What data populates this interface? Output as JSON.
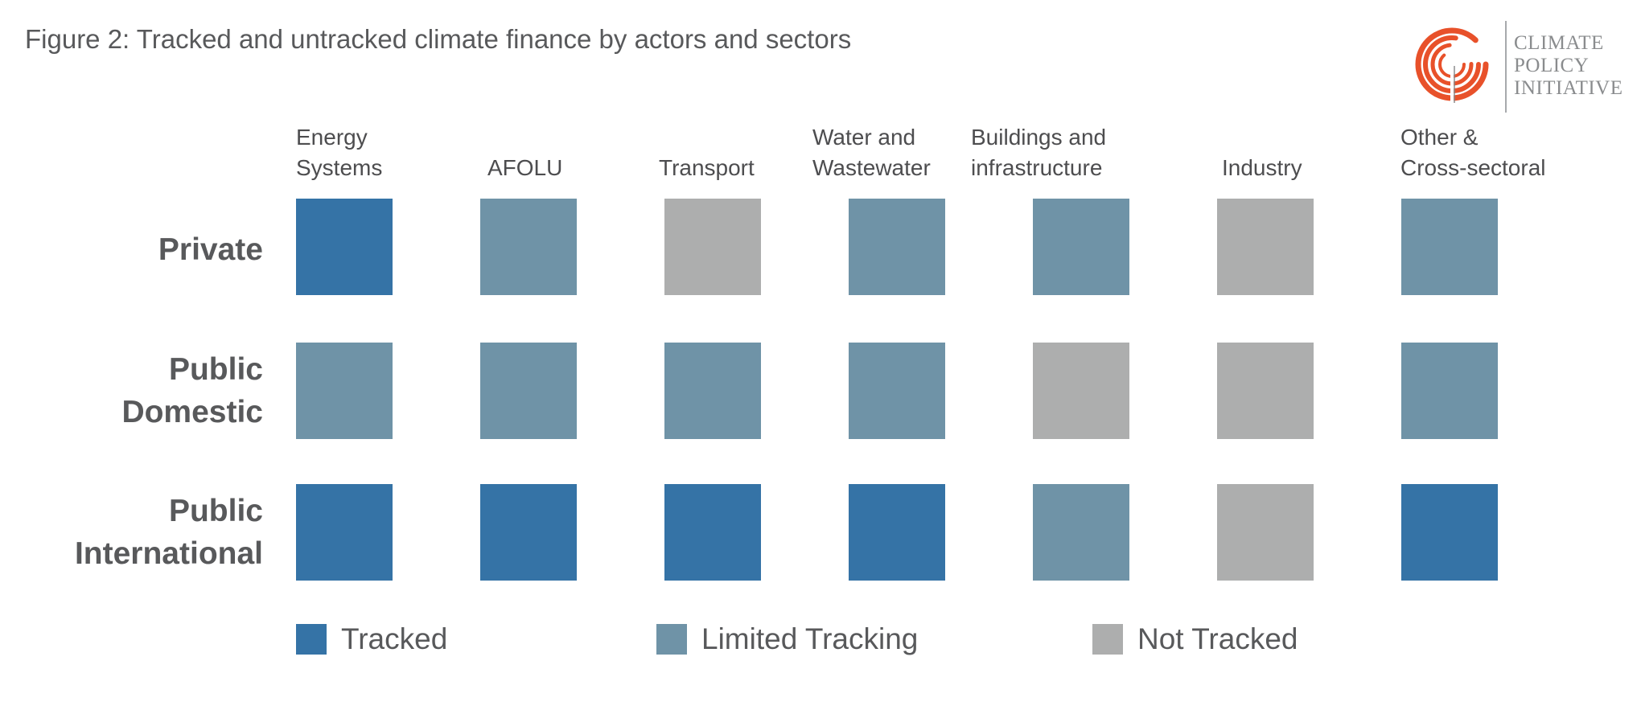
{
  "title": "Figure 2: Tracked and untracked climate finance by actors and sectors",
  "logo": {
    "lines": [
      "CLIMATE",
      "POLICY",
      "INITIATIVE"
    ],
    "color": "#e8512a"
  },
  "chart_data": {
    "type": "heatmap",
    "columns": [
      [
        "Energy",
        "Systems"
      ],
      [
        "AFOLU"
      ],
      [
        "Transport"
      ],
      [
        "Water and",
        "Wastewater"
      ],
      [
        "Buildings and",
        "infrastructure"
      ],
      [
        "Industry"
      ],
      [
        "Other &",
        "Cross-sectoral"
      ]
    ],
    "rows": [
      [
        "Private"
      ],
      [
        "Public",
        "Domestic"
      ],
      [
        "Public",
        "International"
      ]
    ],
    "values": [
      [
        "tracked",
        "limited",
        "not",
        "limited",
        "limited",
        "not",
        "limited"
      ],
      [
        "limited",
        "limited",
        "limited",
        "limited",
        "not",
        "not",
        "limited"
      ],
      [
        "tracked",
        "tracked",
        "tracked",
        "tracked",
        "limited",
        "not",
        "tracked"
      ]
    ],
    "categories": [
      {
        "key": "tracked",
        "label": "Tracked",
        "color": "#3573a6"
      },
      {
        "key": "limited",
        "label": "Limited Tracking",
        "color": "#6f93a7"
      },
      {
        "key": "not",
        "label": "Not Tracked",
        "color": "#adaeae"
      }
    ],
    "legend_position": "bottom"
  }
}
